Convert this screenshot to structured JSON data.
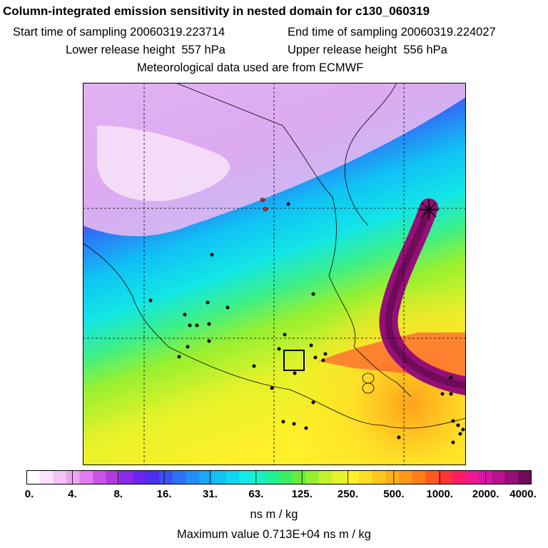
{
  "header": {
    "title": "Column-integrated emission sensitivity in nested domain for c130_060319",
    "start_label": "Start time of sampling 20060319.223714",
    "end_label": "End time of sampling 20060319.224027",
    "lower_label": "Lower release height  557 hPa",
    "upper_label": "Upper release height  556 hPa",
    "met_label": "Meteorological data used are from ECMWF"
  },
  "colorbar": {
    "tick_labels": [
      "0.",
      "4.",
      "8.",
      "16.",
      "31.",
      "63.",
      "125.",
      "250.",
      "500.",
      "1000.",
      "2000.",
      "4000."
    ],
    "colors": [
      "#ffffff",
      "#fbe3fb",
      "#f4c4f5",
      "#eca4f1",
      "#e07ced",
      "#cc52ea",
      "#b23be0",
      "#8a2be8",
      "#6a24ee",
      "#4c2ef0",
      "#3852f3",
      "#2e72f5",
      "#2190f7",
      "#18aaf7",
      "#10c2f5",
      "#0dd6f2",
      "#10ece8",
      "#18f2c2",
      "#20f296",
      "#3cef62",
      "#66ee3c",
      "#96f030",
      "#c4f22c",
      "#e6f22a",
      "#fff02a",
      "#ffde26",
      "#ffc820",
      "#ffb01a",
      "#ff9818",
      "#ff7e1a",
      "#ff5a20",
      "#ff3434",
      "#ff1c62",
      "#f0188e",
      "#d814a4",
      "#b8128c",
      "#960f76",
      "#6e0c5a"
    ],
    "units": "ns m / kg"
  },
  "footer": {
    "max_label": "Maximum value  0.713E+04 ns m / kg"
  },
  "map": {
    "gridlines": "dashed",
    "markers": [
      "release-box",
      "receptor-cross"
    ]
  }
}
